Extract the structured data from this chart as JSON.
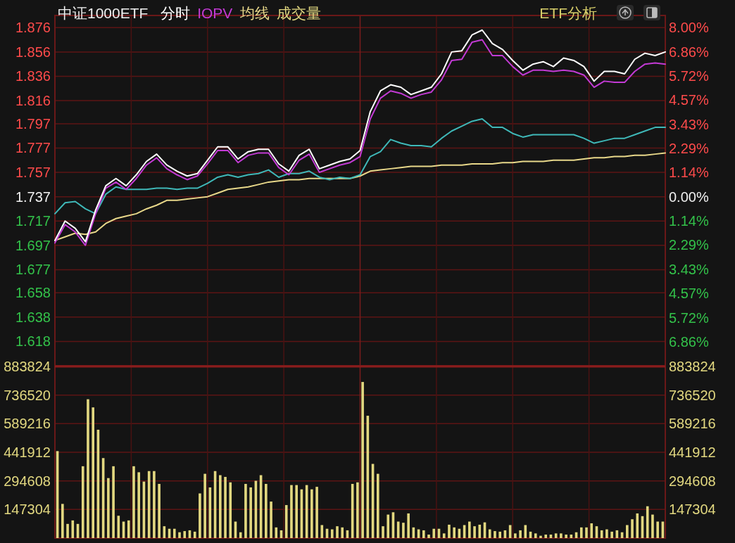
{
  "chart_data": [
    {
      "type": "line",
      "title": "中证1000ETF",
      "annotations": [
        "ETF分析"
      ],
      "categories": [
        null,
        null,
        null,
        null,
        null,
        null,
        null,
        null,
        null,
        null,
        null,
        null,
        null,
        null,
        null,
        null,
        null,
        null,
        null,
        null,
        null,
        null,
        null,
        null,
        null,
        null,
        null,
        null,
        null,
        null,
        null,
        null,
        null,
        null,
        null,
        null,
        null,
        null,
        null,
        null,
        null,
        null,
        null,
        null,
        null,
        null,
        null,
        null,
        null,
        null,
        null,
        null,
        null,
        null,
        null,
        null,
        null,
        null,
        null,
        null,
        null
      ],
      "ylim": [
        1.598,
        1.886
      ],
      "yticks": [
        1.876,
        1.856,
        1.836,
        1.816,
        1.797,
        1.777,
        1.757,
        1.737,
        1.717,
        1.697,
        1.677,
        1.658,
        1.638,
        1.618
      ],
      "y2lim": [
        -8.0,
        8.58
      ],
      "y2ticks": [
        {
          "value": 8.0,
          "label": "8.00%"
        },
        {
          "value": 6.86,
          "label": "6.86%"
        },
        {
          "value": 5.72,
          "label": "5.72%"
        },
        {
          "value": 4.57,
          "label": "4.57%"
        },
        {
          "value": 3.43,
          "label": "3.43%"
        },
        {
          "value": 2.29,
          "label": "2.29%"
        },
        {
          "value": 1.14,
          "label": "1.14%"
        },
        {
          "value": 0,
          "label": "0.00%"
        },
        {
          "value": -1.14,
          "label": "1.14%"
        },
        {
          "value": -2.29,
          "label": "2.29%"
        },
        {
          "value": -3.43,
          "label": "3.43%"
        },
        {
          "value": -4.57,
          "label": "4.57%"
        },
        {
          "value": -5.72,
          "label": "5.72%"
        },
        {
          "value": -6.86,
          "label": "6.86%"
        }
      ],
      "grid": true,
      "series": [
        {
          "name": "均线",
          "color": "#e8d88a",
          "values": [
            1.701,
            1.704,
            1.707,
            1.706,
            1.708,
            1.715,
            1.719,
            1.721,
            1.723,
            1.727,
            1.73,
            1.734,
            1.734,
            1.735,
            1.736,
            1.737,
            1.74,
            1.743,
            1.744,
            1.745,
            1.747,
            1.749,
            1.75,
            1.751,
            1.751,
            1.752,
            1.752,
            1.752,
            1.752,
            1.752,
            1.754,
            1.758,
            1.759,
            1.76,
            1.761,
            1.762,
            1.762,
            1.762,
            1.763,
            1.763,
            1.763,
            1.764,
            1.764,
            1.764,
            1.765,
            1.765,
            1.766,
            1.766,
            1.766,
            1.767,
            1.767,
            1.767,
            1.768,
            1.769,
            1.769,
            1.77,
            1.77,
            1.771,
            1.771,
            1.772,
            1.773
          ]
        },
        {
          "color": "#3fb8b8",
          "values": [
            1.723,
            1.732,
            1.733,
            1.727,
            1.723,
            1.739,
            1.745,
            1.743,
            1.743,
            1.743,
            1.744,
            1.744,
            1.743,
            1.744,
            1.744,
            1.748,
            1.753,
            1.755,
            1.753,
            1.755,
            1.756,
            1.759,
            1.753,
            1.756,
            1.756,
            1.758,
            1.753,
            1.751,
            1.753,
            1.752,
            1.755,
            1.77,
            1.774,
            1.784,
            1.781,
            1.779,
            1.779,
            1.778,
            1.785,
            1.791,
            1.795,
            1.799,
            1.801,
            1.794,
            1.794,
            1.789,
            1.786,
            1.788,
            1.788,
            1.788,
            1.788,
            1.788,
            1.785,
            1.781,
            1.783,
            1.785,
            1.785,
            1.788,
            1.791,
            1.794,
            1.794
          ]
        },
        {
          "name": "IOPV",
          "color": "#c23ad4",
          "values": [
            1.699,
            1.714,
            1.708,
            1.697,
            1.723,
            1.744,
            1.749,
            1.743,
            1.752,
            1.763,
            1.769,
            1.76,
            1.755,
            1.751,
            1.754,
            1.764,
            1.775,
            1.775,
            1.765,
            1.771,
            1.773,
            1.773,
            1.761,
            1.755,
            1.767,
            1.772,
            1.757,
            1.76,
            1.763,
            1.765,
            1.77,
            1.801,
            1.818,
            1.824,
            1.822,
            1.818,
            1.821,
            1.823,
            1.833,
            1.849,
            1.85,
            1.864,
            1.866,
            1.853,
            1.853,
            1.844,
            1.837,
            1.841,
            1.841,
            1.84,
            1.841,
            1.84,
            1.837,
            1.827,
            1.832,
            1.831,
            1.831,
            1.84,
            1.846,
            1.847,
            1.846
          ]
        },
        {
          "name": "分时",
          "color": "#ffffff",
          "values": [
            1.701,
            1.717,
            1.711,
            1.7,
            1.726,
            1.746,
            1.752,
            1.746,
            1.755,
            1.766,
            1.772,
            1.763,
            1.758,
            1.754,
            1.756,
            1.767,
            1.778,
            1.778,
            1.768,
            1.774,
            1.776,
            1.776,
            1.764,
            1.758,
            1.771,
            1.776,
            1.76,
            1.763,
            1.766,
            1.768,
            1.775,
            1.807,
            1.824,
            1.829,
            1.827,
            1.821,
            1.824,
            1.827,
            1.838,
            1.856,
            1.857,
            1.87,
            1.874,
            1.863,
            1.858,
            1.849,
            1.841,
            1.846,
            1.848,
            1.844,
            1.851,
            1.849,
            1.844,
            1.832,
            1.84,
            1.84,
            1.838,
            1.85,
            1.855,
            1.853,
            1.856
          ]
        }
      ]
    },
    {
      "type": "bar",
      "categories": [
        null,
        null,
        null,
        null,
        null,
        null,
        null,
        null,
        null,
        null,
        null,
        null,
        null,
        null,
        null,
        null,
        null,
        null,
        null,
        null,
        null,
        null,
        null,
        null,
        null,
        null,
        null,
        null,
        null,
        null,
        null,
        null,
        null,
        null,
        null,
        null,
        null,
        null,
        null,
        null,
        null,
        null,
        null,
        null,
        null,
        null,
        null,
        null,
        null,
        null,
        null,
        null,
        null,
        null,
        null,
        null,
        null,
        null,
        null,
        null,
        null,
        null,
        null,
        null,
        null,
        null,
        null,
        null,
        null,
        null,
        null,
        null,
        null,
        null,
        null,
        null,
        null,
        null,
        null,
        null,
        null,
        null,
        null,
        null,
        null,
        null,
        null,
        null,
        null,
        null,
        null,
        null,
        null,
        null,
        null,
        null,
        null,
        null,
        null,
        null,
        null,
        null,
        null,
        null,
        null,
        null,
        null,
        null,
        null,
        null,
        null,
        null,
        null,
        null,
        null,
        null,
        null,
        null,
        null,
        null
      ],
      "ylim": [
        0,
        883824
      ],
      "yticks": [
        883824,
        736520,
        589216,
        441912,
        294608,
        147304
      ],
      "y2lim": [
        0,
        883824
      ],
      "y2ticks": [
        883824,
        736520,
        589216,
        441912,
        294608,
        147304
      ],
      "grid": true,
      "series": [
        {
          "name": "成交量",
          "color": "#e2d880",
          "values": [
            448000,
            176000,
            73000,
            91000,
            73000,
            370000,
            715000,
            673000,
            558000,
            412000,
            309000,
            370000,
            115000,
            85000,
            91000,
            370000,
            339000,
            291000,
            345000,
            345000,
            279000,
            61000,
            48000,
            48000,
            30000,
            36000,
            40000,
            33000,
            230000,
            331000,
            261000,
            345000,
            324000,
            315000,
            287000,
            85000,
            30000,
            279000,
            261000,
            295000,
            324000,
            279000,
            188000,
            55000,
            40000,
            170000,
            273000,
            273000,
            251000,
            273000,
            251000,
            264000,
            67000,
            48000,
            45000,
            61000,
            55000,
            40000,
            279000,
            287000,
            804000,
            630000,
            382000,
            331000,
            61000,
            121000,
            133000,
            85000,
            79000,
            127000,
            55000,
            45000,
            40000,
            18000,
            48000,
            48000,
            24000,
            69000,
            55000,
            48000,
            67000,
            85000,
            61000,
            69000,
            81000,
            45000,
            36000,
            33000,
            40000,
            67000,
            24000,
            40000,
            67000,
            33000,
            24000,
            12000,
            18000,
            18000,
            24000,
            24000,
            18000,
            18000,
            30000,
            55000,
            55000,
            76000,
            61000,
            40000,
            45000,
            33000,
            40000,
            30000,
            67000,
            97000,
            127000,
            113000,
            164000,
            121000,
            85000,
            85000
          ]
        }
      ]
    }
  ]
}
